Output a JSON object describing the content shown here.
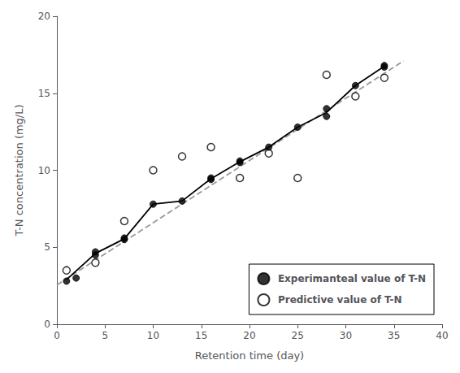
{
  "chart_data": {
    "type": "scatter",
    "xlabel": "Retention time (day)",
    "ylabel": "T-N concentration (mg/L)",
    "xlim": [
      0,
      40
    ],
    "ylim": [
      0,
      20
    ],
    "xticks": [
      0,
      5,
      10,
      15,
      20,
      25,
      30,
      35,
      40
    ],
    "yticks": [
      0,
      5,
      10,
      15,
      20
    ],
    "grid": false,
    "legend": "lower right",
    "series": [
      {
        "type": "line",
        "line_style": "dashed",
        "color": "#999999",
        "x": [
          0,
          36
        ],
        "values": [
          2.55,
          17.1
        ]
      },
      {
        "type": "line",
        "line_style": "solid",
        "color": "#000000",
        "x": [
          1,
          4,
          7,
          10,
          13,
          16,
          19,
          22,
          25,
          28,
          31,
          34
        ],
        "values": [
          2.9,
          4.6,
          5.55,
          7.8,
          8.0,
          9.45,
          10.55,
          11.5,
          12.8,
          13.75,
          15.5,
          16.75
        ]
      },
      {
        "name": "Experimanteal value of T-N",
        "type": "scatter",
        "marker": "circle",
        "color": "#000000",
        "x": [
          1,
          2,
          4,
          4,
          7,
          7,
          10,
          13,
          16,
          16,
          19,
          19,
          22,
          25,
          28,
          28,
          31,
          34,
          34
        ],
        "values": [
          2.8,
          3.0,
          4.5,
          4.7,
          5.5,
          5.6,
          7.8,
          8.0,
          9.4,
          9.5,
          10.5,
          10.6,
          11.5,
          12.8,
          13.5,
          14.0,
          15.5,
          16.7,
          16.8
        ]
      },
      {
        "name": "Predictive value of T-N",
        "type": "scatter",
        "marker": "open circle",
        "color": "#000000",
        "x": [
          1,
          4,
          7,
          10,
          13,
          16,
          19,
          22,
          25,
          28,
          31,
          34
        ],
        "values": [
          3.5,
          4.0,
          6.7,
          10.0,
          10.9,
          11.5,
          9.5,
          11.1,
          9.5,
          16.2,
          14.8,
          16.0
        ]
      }
    ]
  }
}
